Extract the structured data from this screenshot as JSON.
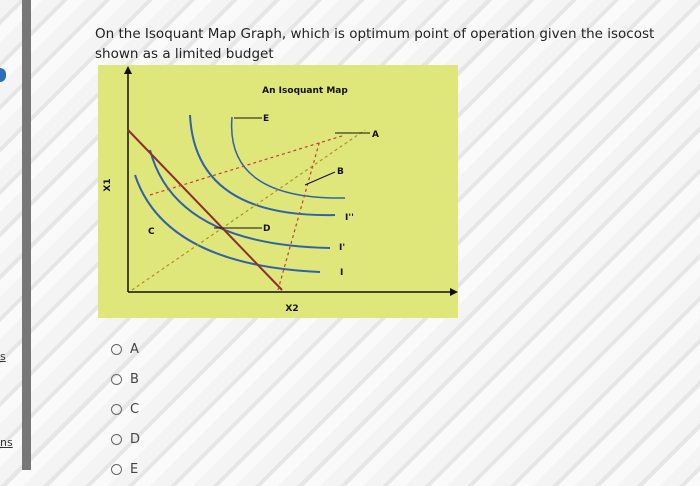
{
  "sidebar": {
    "fragments": [
      "s",
      "ns"
    ]
  },
  "question": {
    "text": "On the Isoquant Map Graph, which is optimum point of operation given the isocost shown as a limited budget"
  },
  "graph": {
    "title": "An Isoquant Map",
    "y_axis_label": "X1",
    "x_axis_label": "X2",
    "curve_labels": [
      "I",
      "I'",
      "I''"
    ],
    "point_labels": [
      "A",
      "B",
      "C",
      "D",
      "E"
    ]
  },
  "options": [
    "A",
    "B",
    "C",
    "D",
    "E"
  ]
}
